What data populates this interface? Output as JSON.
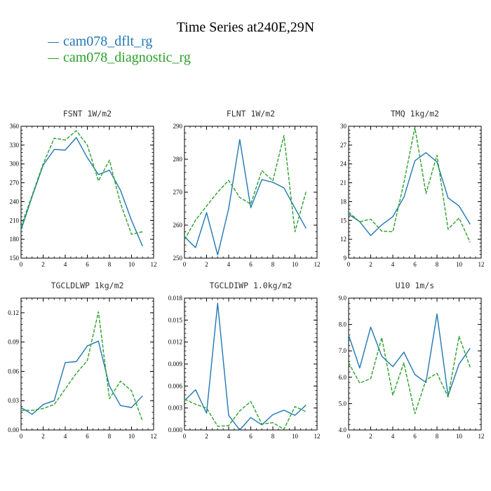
{
  "title": "Time Series at240E,29N",
  "legend": [
    {
      "label": "cam078_dflt_rg",
      "color": "#1f77b4"
    },
    {
      "label": "cam078_diagnostic_rg",
      "color": "#2ca02c"
    }
  ],
  "chart_data": [
    {
      "type": "line",
      "title": "FSNT   1W/m2",
      "x": [
        0,
        1,
        2,
        3,
        4,
        5,
        6,
        7,
        8,
        9,
        10,
        11
      ],
      "xlim": [
        0,
        12
      ],
      "xticks": [
        0,
        2,
        4,
        6,
        8,
        10,
        12
      ],
      "ylim": [
        150,
        360
      ],
      "yticks": [
        150,
        180,
        210,
        240,
        270,
        300,
        330,
        360
      ],
      "ytick_labels": [
        "150",
        "180",
        "210",
        "240",
        "270",
        "300",
        "330",
        "360"
      ],
      "series": [
        {
          "name": "cam078_dflt_rg",
          "values": [
            195,
            248,
            298,
            323,
            322,
            342,
            310,
            283,
            290,
            258,
            210,
            169
          ]
        },
        {
          "name": "cam078_diagnostic_rg",
          "values": [
            200,
            250,
            300,
            341,
            338,
            353,
            330,
            273,
            306,
            237,
            188,
            192
          ]
        }
      ]
    },
    {
      "type": "line",
      "title": "FLNT   1W/m2",
      "x": [
        0,
        1,
        2,
        3,
        4,
        5,
        6,
        7,
        8,
        9,
        10,
        11
      ],
      "xlim": [
        0,
        12
      ],
      "xticks": [
        0,
        2,
        4,
        6,
        8,
        10,
        12
      ],
      "ylim": [
        250,
        290
      ],
      "yticks": [
        250,
        260,
        270,
        280,
        290
      ],
      "ytick_labels": [
        "250",
        "260",
        "270",
        "280",
        "290"
      ],
      "series": [
        {
          "name": "cam078_dflt_rg",
          "values": [
            256.5,
            253.2,
            263.8,
            251.0,
            265.0,
            286.0,
            265.3,
            273.8,
            273.0,
            271.3,
            265.2,
            259.0
          ]
        },
        {
          "name": "cam078_diagnostic_rg",
          "values": [
            255.6,
            261.5,
            265.8,
            270.0,
            273.6,
            268.4,
            266.4,
            276.5,
            273.5,
            287.2,
            258.0,
            270.2
          ]
        }
      ]
    },
    {
      "type": "line",
      "title": "TMQ   1kg/m2",
      "x": [
        0,
        1,
        2,
        3,
        4,
        5,
        6,
        7,
        8,
        9,
        10,
        11
      ],
      "xlim": [
        0,
        12
      ],
      "xticks": [
        0,
        2,
        4,
        6,
        8,
        10,
        12
      ],
      "ylim": [
        9,
        30
      ],
      "yticks": [
        9,
        12,
        15,
        18,
        21,
        24,
        27,
        30
      ],
      "ytick_labels": [
        "9",
        "12",
        "15",
        "18",
        "21",
        "24",
        "27",
        "30"
      ],
      "series": [
        {
          "name": "cam078_dflt_rg",
          "values": [
            16.0,
            14.8,
            12.6,
            14.3,
            15.6,
            18.7,
            24.5,
            25.8,
            24.3,
            18.6,
            17.3,
            14.4
          ]
        },
        {
          "name": "cam078_diagnostic_rg",
          "values": [
            16.3,
            14.8,
            15.2,
            13.3,
            13.2,
            21.0,
            29.8,
            19.3,
            25.4,
            13.6,
            15.4,
            11.5
          ]
        }
      ]
    },
    {
      "type": "line",
      "title": "TGCLDLWP   1kg/m2",
      "x": [
        0,
        1,
        2,
        3,
        4,
        5,
        6,
        7,
        8,
        9,
        10,
        11
      ],
      "xlim": [
        0,
        12
      ],
      "xticks": [
        0,
        2,
        4,
        6,
        8,
        10,
        12
      ],
      "ylim": [
        0,
        0.135
      ],
      "yticks": [
        0,
        0.03,
        0.06,
        0.09,
        0.12
      ],
      "ytick_labels": [
        "0.00",
        "0.03",
        "0.06",
        "0.09",
        "0.12"
      ],
      "series": [
        {
          "name": "cam078_dflt_rg",
          "values": [
            0.023,
            0.016,
            0.026,
            0.03,
            0.069,
            0.07,
            0.086,
            0.091,
            0.045,
            0.025,
            0.023,
            0.035
          ]
        },
        {
          "name": "cam078_diagnostic_rg",
          "values": [
            0.02,
            0.02,
            0.022,
            0.026,
            0.042,
            0.058,
            0.071,
            0.121,
            0.032,
            0.05,
            0.04,
            0.009
          ]
        }
      ]
    },
    {
      "type": "line",
      "title": "TGCLDIWP   1.0kg/m2",
      "x": [
        0,
        1,
        2,
        3,
        4,
        5,
        6,
        7,
        8,
        9,
        10,
        11
      ],
      "xlim": [
        0,
        12
      ],
      "xticks": [
        0,
        2,
        4,
        6,
        8,
        10,
        12
      ],
      "ylim": [
        0,
        0.018
      ],
      "yticks": [
        0,
        0.003,
        0.006,
        0.009,
        0.012,
        0.015,
        0.018
      ],
      "ytick_labels": [
        "0.000",
        "0.003",
        "0.006",
        "0.009",
        "0.012",
        "0.015",
        "0.018"
      ],
      "series": [
        {
          "name": "cam078_dflt_rg",
          "values": [
            0.004,
            0.0055,
            0.0023,
            0.0173,
            0.002,
            0.0,
            0.0017,
            0.0007,
            0.0021,
            0.0027,
            0.002,
            0.0034
          ]
        },
        {
          "name": "cam078_diagnostic_rg",
          "values": [
            0.0042,
            0.0035,
            0.003,
            0.0005,
            0.0006,
            0.0026,
            0.0039,
            0.0008,
            0.001,
            0.0001,
            0.0032,
            0.0025
          ]
        }
      ]
    },
    {
      "type": "line",
      "title": "U10   1m/s",
      "x": [
        0,
        1,
        2,
        3,
        4,
        5,
        6,
        7,
        8,
        9,
        10,
        11
      ],
      "xlim": [
        0,
        12
      ],
      "xticks": [
        0,
        2,
        4,
        6,
        8,
        10,
        12
      ],
      "ylim": [
        4,
        9
      ],
      "yticks": [
        4,
        5,
        6,
        7,
        8,
        9
      ],
      "ytick_labels": [
        "4.0",
        "5.0",
        "6.0",
        "7.0",
        "8.0",
        "9.0"
      ],
      "series": [
        {
          "name": "cam078_dflt_rg",
          "values": [
            7.6,
            6.35,
            7.9,
            6.8,
            6.4,
            6.95,
            6.1,
            5.8,
            8.4,
            5.3,
            6.5,
            7.1
          ]
        },
        {
          "name": "cam078_diagnostic_rg",
          "values": [
            6.55,
            5.78,
            5.95,
            7.5,
            5.32,
            6.55,
            4.62,
            5.9,
            6.15,
            5.25,
            7.55,
            6.38
          ]
        }
      ]
    }
  ]
}
